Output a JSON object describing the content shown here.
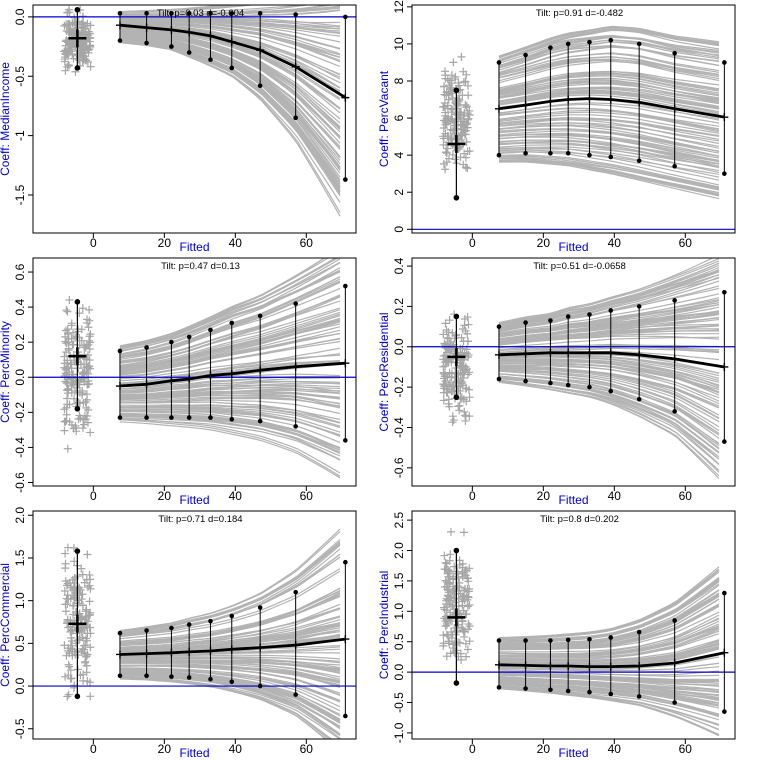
{
  "colors": {
    "axis": "#000000",
    "label": "#0000cc",
    "zero_line": "#0000cc",
    "curves": "#b3b3b3",
    "points": "#a6a6a6",
    "summary": "#000000"
  },
  "chart_data": [
    {
      "type": "line",
      "title": "Tilt: p=0.03  d=-0.604",
      "xlabel": "Fitted",
      "ylabel": "Coeff: MedianIncome",
      "xlim": [
        -17,
        74
      ],
      "ylim": [
        -1.82,
        0.1
      ],
      "xticks": [
        0,
        20,
        40,
        60
      ],
      "yticks": [
        0.0,
        -0.5,
        -1.0,
        -1.5
      ],
      "yticklabels": [
        "0.0",
        "-0.5",
        "-1",
        "-1.5"
      ],
      "zero_line": 0,
      "summary": {
        "x": [
          7.5,
          15,
          22,
          27,
          33,
          39,
          47,
          57,
          71
        ],
        "mid": [
          -0.07,
          -0.09,
          -0.11,
          -0.13,
          -0.16,
          -0.21,
          -0.28,
          -0.42,
          -0.68
        ],
        "low": [
          -0.2,
          -0.22,
          -0.25,
          -0.3,
          -0.36,
          -0.43,
          -0.58,
          -0.85,
          -1.37
        ],
        "high": [
          0.03,
          0.03,
          0.03,
          0.03,
          0.03,
          0.03,
          0.03,
          0.02,
          0.0
        ]
      },
      "curve_spread": {
        "top": 0.03,
        "bottom": -1.82,
        "fan": 1.0
      },
      "estimate": {
        "x": -4.5,
        "mid": -0.18,
        "low": -0.43,
        "high": 0.06,
        "cluster_low": -0.55,
        "cluster_high": 0.13
      }
    },
    {
      "type": "line",
      "title": "Tilt: p=0.91  d=-0.482",
      "xlabel": "Fitted",
      "ylabel": "Coeff: PercVacant",
      "xlim": [
        -17,
        74
      ],
      "ylim": [
        -0.2,
        12.1
      ],
      "xticks": [
        0,
        20,
        40,
        60
      ],
      "yticks": [
        0,
        2,
        4,
        6,
        8,
        10,
        12
      ],
      "yticklabels": [
        "0",
        "2",
        "4",
        "6",
        "8",
        "10",
        "12"
      ],
      "zero_line": 0,
      "summary": {
        "x": [
          7.5,
          15,
          22,
          27,
          33,
          39,
          47,
          57,
          71
        ],
        "mid": [
          6.5,
          6.7,
          6.9,
          7.0,
          7.05,
          7.0,
          6.85,
          6.5,
          6.05
        ],
        "low": [
          4.0,
          4.1,
          4.1,
          4.1,
          4.0,
          3.9,
          3.7,
          3.4,
          3.0
        ],
        "high": [
          9.0,
          9.4,
          9.8,
          10.0,
          10.1,
          10.2,
          10.0,
          9.5,
          9.0
        ]
      },
      "curve_spread": {
        "top": 11.8,
        "bottom": 2.6,
        "fan": 0.6
      },
      "estimate": {
        "x": -4.5,
        "mid": 4.6,
        "low": 1.7,
        "high": 7.5,
        "cluster_low": 1.9,
        "cluster_high": 10.0
      }
    },
    {
      "type": "line",
      "title": "Tilt: p=0.47  d=0.13",
      "xlabel": "Fitted",
      "ylabel": "Coeff: PercMinority",
      "xlim": [
        -17,
        74
      ],
      "ylim": [
        -0.62,
        0.68
      ],
      "xticks": [
        0,
        20,
        40,
        60
      ],
      "yticks": [
        -0.6,
        -0.4,
        -0.2,
        0.0,
        0.2,
        0.4,
        0.6
      ],
      "yticklabels": [
        "-0.6",
        "-0.4",
        "-0.2",
        "0.0",
        "0.2",
        "0.4",
        "0.6"
      ],
      "zero_line": 0,
      "summary": {
        "x": [
          7.5,
          15,
          22,
          27,
          33,
          39,
          47,
          57,
          71
        ],
        "mid": [
          -0.05,
          -0.04,
          -0.02,
          -0.01,
          0.01,
          0.02,
          0.04,
          0.06,
          0.08
        ],
        "low": [
          -0.23,
          -0.23,
          -0.23,
          -0.23,
          -0.23,
          -0.24,
          -0.25,
          -0.28,
          -0.36
        ],
        "high": [
          0.15,
          0.17,
          0.2,
          0.23,
          0.27,
          0.31,
          0.35,
          0.42,
          0.52
        ]
      },
      "curve_spread": {
        "top": 0.68,
        "bottom": -0.55,
        "fan": 1.0
      },
      "estimate": {
        "x": -4.5,
        "mid": 0.12,
        "low": -0.18,
        "high": 0.43,
        "cluster_low": -0.5,
        "cluster_high": 0.55
      }
    },
    {
      "type": "line",
      "title": "Tilt: p=0.51  d=-0.0658",
      "xlabel": "Fitted",
      "ylabel": "Coeff: PercResidential",
      "xlim": [
        -17,
        74
      ],
      "ylim": [
        -0.69,
        0.44
      ],
      "xticks": [
        0,
        20,
        40,
        60
      ],
      "yticks": [
        -0.6,
        -0.4,
        -0.2,
        0.0,
        0.2,
        0.4
      ],
      "yticklabels": [
        "-0.6",
        "-0.4",
        "-0.2",
        "0.0",
        "0.2",
        "0.4"
      ],
      "zero_line": 0,
      "summary": {
        "x": [
          7.5,
          15,
          22,
          27,
          33,
          39,
          47,
          57,
          71
        ],
        "mid": [
          -0.04,
          -0.035,
          -0.03,
          -0.03,
          -0.03,
          -0.03,
          -0.04,
          -0.06,
          -0.1
        ],
        "low": [
          -0.16,
          -0.17,
          -0.18,
          -0.19,
          -0.2,
          -0.22,
          -0.26,
          -0.32,
          -0.47
        ],
        "high": [
          0.1,
          0.12,
          0.13,
          0.15,
          0.16,
          0.18,
          0.2,
          0.23,
          0.27
        ]
      },
      "curve_spread": {
        "top": 0.44,
        "bottom": -0.66,
        "fan": 1.0
      },
      "estimate": {
        "x": -4.5,
        "mid": -0.05,
        "low": -0.25,
        "high": 0.15,
        "cluster_low": -0.46,
        "cluster_high": 0.26
      }
    },
    {
      "type": "line",
      "title": "Tilt: p=0.71  d=0.184",
      "xlabel": "Fitted",
      "ylabel": "Coeff: PercCommercial",
      "xlim": [
        -17,
        74
      ],
      "ylim": [
        -0.62,
        2.05
      ],
      "xticks": [
        0,
        20,
        40,
        60
      ],
      "yticks": [
        -0.5,
        0.0,
        0.5,
        1.0,
        1.5,
        2.0
      ],
      "yticklabels": [
        "-0.5",
        "0.0",
        "0.5",
        "1.0",
        "1.5",
        "2.0"
      ],
      "zero_line": 0,
      "summary": {
        "x": [
          7.5,
          15,
          22,
          27,
          33,
          39,
          47,
          57,
          71
        ],
        "mid": [
          0.37,
          0.38,
          0.39,
          0.4,
          0.41,
          0.43,
          0.45,
          0.48,
          0.55
        ],
        "low": [
          0.12,
          0.12,
          0.11,
          0.1,
          0.08,
          0.05,
          0.0,
          -0.1,
          -0.35
        ],
        "high": [
          0.62,
          0.65,
          0.68,
          0.72,
          0.76,
          0.82,
          0.92,
          1.1,
          1.45
        ]
      },
      "curve_spread": {
        "top": 2.0,
        "bottom": -0.6,
        "fan": 1.0
      },
      "estimate": {
        "x": -4.5,
        "mid": 0.73,
        "low": -0.12,
        "high": 1.58,
        "cluster_low": -0.4,
        "cluster_high": 1.95
      }
    },
    {
      "type": "line",
      "title": "Tilt: p=0.8  d=0.202",
      "xlabel": "Fitted",
      "ylabel": "Coeff: PercIndustrial",
      "xlim": [
        -17,
        74
      ],
      "ylim": [
        -1.1,
        2.65
      ],
      "xticks": [
        0,
        20,
        40,
        60
      ],
      "yticks": [
        -1.0,
        -0.5,
        0.0,
        0.5,
        1.0,
        1.5,
        2.0,
        2.5
      ],
      "yticklabels": [
        "-1.0",
        "-0.5",
        "0.0",
        "0.5",
        "1.0",
        "1.5",
        "2.0",
        "2.5"
      ],
      "zero_line": 0,
      "summary": {
        "x": [
          7.5,
          15,
          22,
          27,
          33,
          39,
          47,
          57,
          71
        ],
        "mid": [
          0.12,
          0.11,
          0.1,
          0.1,
          0.09,
          0.09,
          0.1,
          0.15,
          0.32
        ],
        "low": [
          -0.25,
          -0.27,
          -0.29,
          -0.31,
          -0.33,
          -0.36,
          -0.4,
          -0.5,
          -0.65
        ],
        "high": [
          0.52,
          0.52,
          0.52,
          0.53,
          0.54,
          0.57,
          0.66,
          0.85,
          1.3
        ]
      },
      "curve_spread": {
        "top": 2.3,
        "bottom": -0.75,
        "fan": 1.0
      },
      "estimate": {
        "x": -4.5,
        "mid": 0.9,
        "low": -0.18,
        "high": 2.0,
        "cluster_low": -0.2,
        "cluster_high": 2.5
      }
    }
  ]
}
